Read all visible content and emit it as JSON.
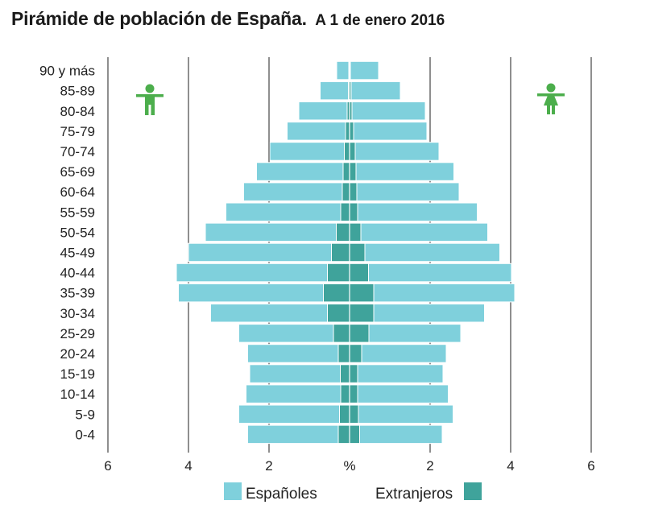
{
  "header": {
    "title": "Pirámide de población de España.",
    "subtitle": "A 1 de enero 2016"
  },
  "chart_data": {
    "type": "bar",
    "orientation": "horizontal-pyramid",
    "title": "Pirámide de población de España. A 1 de enero 2016",
    "xlabel": "%",
    "xlim": [
      -6,
      6
    ],
    "x_ticks": [
      -6,
      -4,
      -2,
      0,
      2,
      4,
      6
    ],
    "x_tick_labels": [
      "6",
      "4",
      "2",
      "%",
      "2",
      "4",
      "6"
    ],
    "left_side": "Hombres",
    "right_side": "Mujeres",
    "categories": [
      "90 y más",
      "85-89",
      "80-84",
      "75-79",
      "70-74",
      "65-69",
      "60-64",
      "55-59",
      "50-54",
      "45-49",
      "40-44",
      "35-39",
      "30-34",
      "25-29",
      "20-24",
      "15-19",
      "10-14",
      "5-9",
      "0-4"
    ],
    "series": [
      {
        "name": "Españoles",
        "sex": "Hombres",
        "color": "#7fd0dc",
        "values": [
          0.3,
          0.7,
          1.2,
          1.45,
          1.85,
          2.15,
          2.45,
          2.85,
          3.25,
          3.55,
          3.75,
          3.6,
          2.9,
          2.35,
          2.25,
          2.25,
          2.35,
          2.5,
          2.25
        ]
      },
      {
        "name": "Extranjeros",
        "sex": "Hombres",
        "color": "#3fa39b",
        "values": [
          0.02,
          0.03,
          0.06,
          0.1,
          0.13,
          0.16,
          0.18,
          0.22,
          0.33,
          0.45,
          0.55,
          0.65,
          0.55,
          0.4,
          0.28,
          0.23,
          0.22,
          0.25,
          0.28
        ]
      },
      {
        "name": "Españoles",
        "sex": "Mujeres",
        "color": "#7fd0dc",
        "values": [
          0.7,
          1.22,
          1.82,
          1.82,
          2.08,
          2.43,
          2.54,
          2.97,
          3.15,
          3.35,
          3.55,
          3.5,
          2.75,
          2.28,
          2.1,
          2.12,
          2.25,
          2.35,
          2.05
        ]
      },
      {
        "name": "Extranjeros",
        "sex": "Mujeres",
        "color": "#3fa39b",
        "values": [
          0.02,
          0.04,
          0.06,
          0.1,
          0.14,
          0.16,
          0.18,
          0.2,
          0.28,
          0.38,
          0.47,
          0.6,
          0.6,
          0.48,
          0.3,
          0.2,
          0.2,
          0.22,
          0.25
        ]
      }
    ],
    "legend": [
      {
        "label": "Españoles",
        "color": "#7fd0dc"
      },
      {
        "label": "Extranjeros",
        "color": "#3fa39b"
      }
    ],
    "legend_position": "bottom",
    "grid": true,
    "icon_color": "#4cae4c"
  }
}
